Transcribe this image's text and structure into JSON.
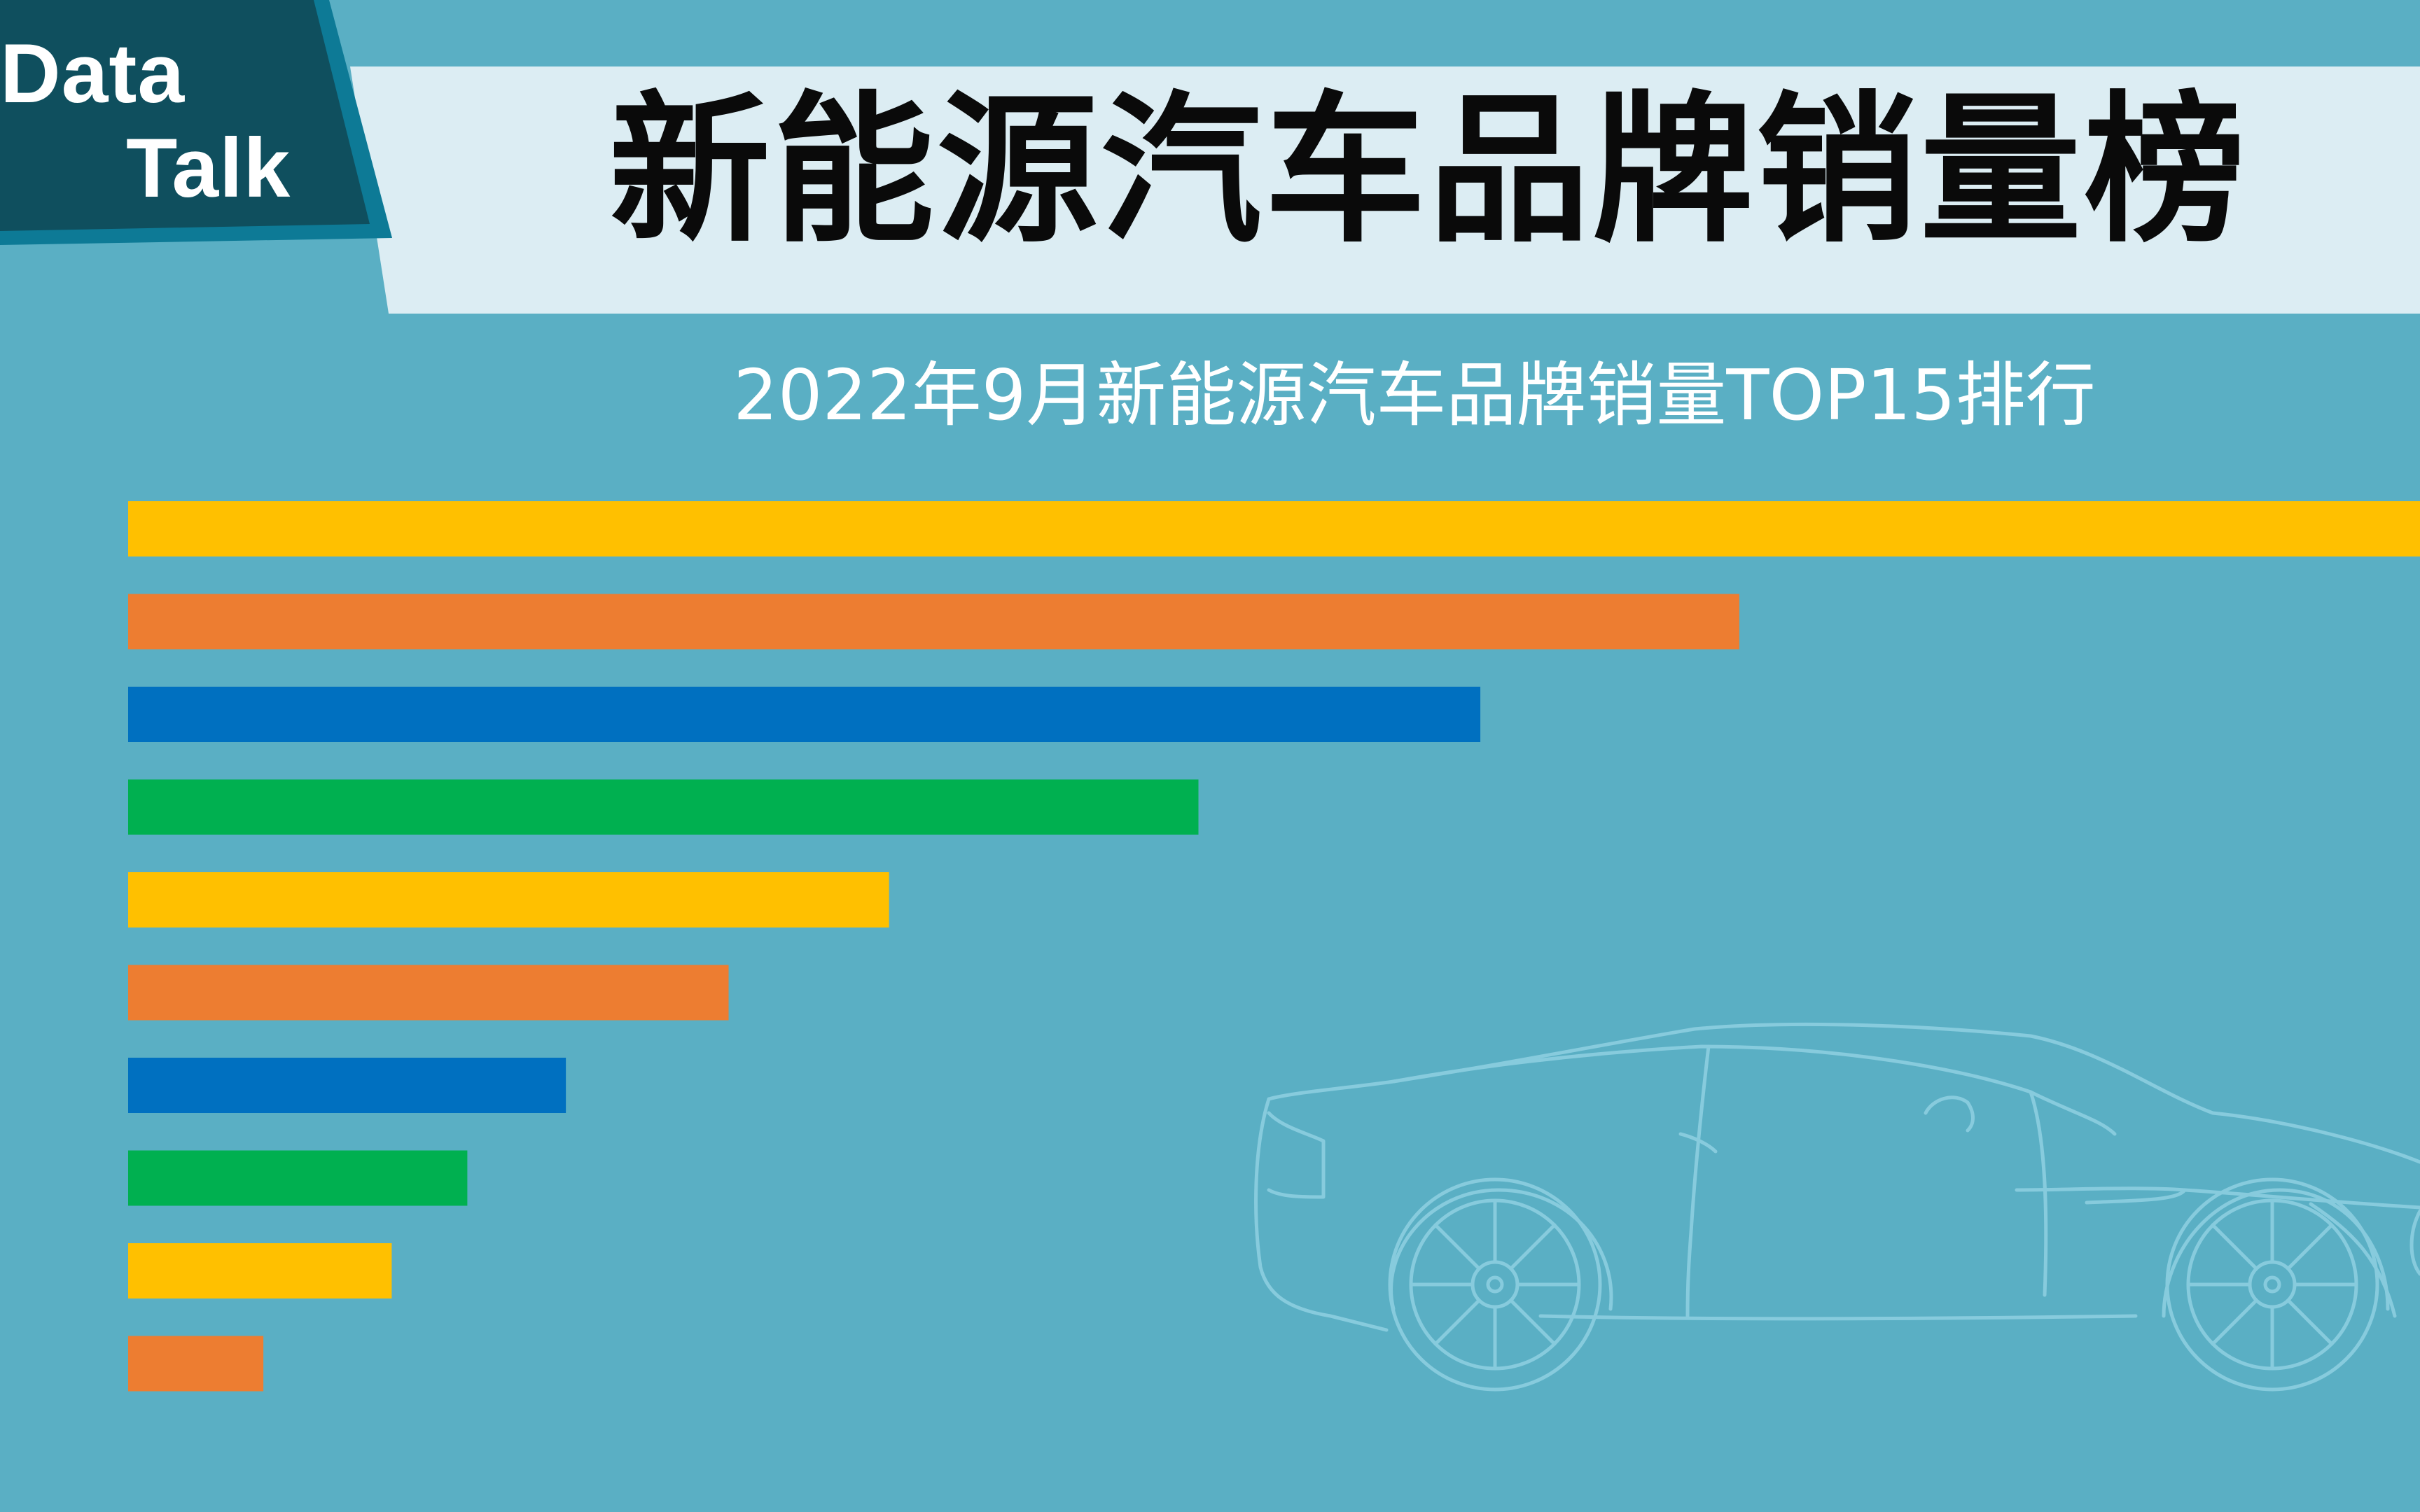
{
  "logo": {
    "line1": "Data",
    "line2": "Talk"
  },
  "header": {
    "title": "新能源汽车品牌销量榜",
    "subtitle": "2022年9月新能源汽车品牌销量TOP15排行"
  },
  "colors": {
    "background": "#5aafc4",
    "banner": "#dcedf3",
    "logo_box": "#0f4f5e",
    "logo_border": "#0d7a96",
    "car_outline": "#8fd0e2",
    "bar_palette": [
      "#ffc000",
      "#ed7d31",
      "#0070c0",
      "#00b050"
    ]
  },
  "chart_data": {
    "type": "bar",
    "orientation": "horizontal",
    "title": "2022年9月新能源汽车品牌销量TOP15排行",
    "values": [
      100,
      70.3,
      59,
      46.7,
      33.2,
      26.2,
      19.1,
      14.8,
      11.5,
      5.9
    ],
    "xlim": [
      0,
      100
    ],
    "grid": false,
    "legend": "none",
    "bar_colors": [
      "#ffc000",
      "#ed7d31",
      "#0070c0",
      "#00b050",
      "#ffc000",
      "#ed7d31",
      "#0070c0",
      "#00b050",
      "#ffc000",
      "#ed7d31"
    ]
  }
}
